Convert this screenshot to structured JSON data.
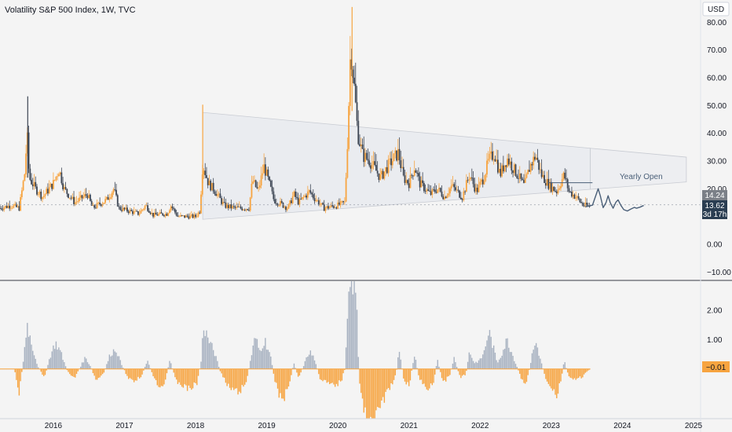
{
  "header": {
    "title": "Volatility S&P 500 Index, 1W, TVC",
    "currency": "USD"
  },
  "price_tags": {
    "upper": "14.24",
    "last": "13.62",
    "countdown": "3d 17h",
    "oscillator": "−0.01"
  },
  "annotations": {
    "yearly_open": "Yearly Open"
  },
  "colors": {
    "up": "#f7a440",
    "down": "#3d4654",
    "osc_pos": "#a8b2c1",
    "osc_neg": "#f7a440",
    "projection": "#4a5f78",
    "triangle_fill": "#e8eaee",
    "tag_dark": "#2a3d52",
    "tag_gray": "#7b8088",
    "tag_orange": "#f7a440"
  },
  "chart_data": [
    {
      "type": "candlestick",
      "title": "Volatility S&P 500 Index, 1W, TVC",
      "y_ticks": [
        "80.00",
        "70.00",
        "60.00",
        "50.00",
        "40.00",
        "30.00",
        "20.00",
        "0.00",
        "−10.00"
      ],
      "ylim": [
        -13,
        88
      ],
      "x_ticks": [
        "2016",
        "2017",
        "2018",
        "2019",
        "2020",
        "2021",
        "2022",
        "2023",
        "2024",
        "2025"
      ],
      "xlim": [
        2015.25,
        2025.1
      ],
      "last_value": 13.62,
      "keypoints": [
        {
          "t": 2015.25,
          "v": 13
        },
        {
          "t": 2015.4,
          "v": 14
        },
        {
          "t": 2015.52,
          "v": 13
        },
        {
          "t": 2015.6,
          "v": 26
        },
        {
          "t": 2015.63,
          "v": 40
        },
        {
          "t": 2015.66,
          "v": 24
        },
        {
          "t": 2015.75,
          "v": 20
        },
        {
          "t": 2015.85,
          "v": 17
        },
        {
          "t": 2016.0,
          "v": 22
        },
        {
          "t": 2016.08,
          "v": 27
        },
        {
          "t": 2016.15,
          "v": 20
        },
        {
          "t": 2016.3,
          "v": 15
        },
        {
          "t": 2016.48,
          "v": 18
        },
        {
          "t": 2016.55,
          "v": 13
        },
        {
          "t": 2016.75,
          "v": 16
        },
        {
          "t": 2016.85,
          "v": 20
        },
        {
          "t": 2016.92,
          "v": 13
        },
        {
          "t": 2017.2,
          "v": 11
        },
        {
          "t": 2017.3,
          "v": 14
        },
        {
          "t": 2017.4,
          "v": 10.5
        },
        {
          "t": 2017.6,
          "v": 11
        },
        {
          "t": 2017.65,
          "v": 14
        },
        {
          "t": 2017.75,
          "v": 10
        },
        {
          "t": 2018.0,
          "v": 10
        },
        {
          "t": 2018.06,
          "v": 12
        },
        {
          "t": 2018.1,
          "v": 29
        },
        {
          "t": 2018.18,
          "v": 22
        },
        {
          "t": 2018.28,
          "v": 19
        },
        {
          "t": 2018.4,
          "v": 14
        },
        {
          "t": 2018.55,
          "v": 13
        },
        {
          "t": 2018.75,
          "v": 13
        },
        {
          "t": 2018.8,
          "v": 23
        },
        {
          "t": 2018.88,
          "v": 19
        },
        {
          "t": 2018.96,
          "v": 28
        },
        {
          "t": 2019.0,
          "v": 25
        },
        {
          "t": 2019.1,
          "v": 16
        },
        {
          "t": 2019.3,
          "v": 13
        },
        {
          "t": 2019.38,
          "v": 18
        },
        {
          "t": 2019.45,
          "v": 15
        },
        {
          "t": 2019.6,
          "v": 19
        },
        {
          "t": 2019.66,
          "v": 17
        },
        {
          "t": 2019.8,
          "v": 13
        },
        {
          "t": 2020.0,
          "v": 14
        },
        {
          "t": 2020.1,
          "v": 15
        },
        {
          "t": 2020.14,
          "v": 40
        },
        {
          "t": 2020.18,
          "v": 72
        },
        {
          "t": 2020.22,
          "v": 60
        },
        {
          "t": 2020.28,
          "v": 40
        },
        {
          "t": 2020.35,
          "v": 32
        },
        {
          "t": 2020.45,
          "v": 30
        },
        {
          "t": 2020.5,
          "v": 28
        },
        {
          "t": 2020.6,
          "v": 24
        },
        {
          "t": 2020.7,
          "v": 28
        },
        {
          "t": 2020.85,
          "v": 33
        },
        {
          "t": 2020.92,
          "v": 24
        },
        {
          "t": 2021.0,
          "v": 22
        },
        {
          "t": 2021.08,
          "v": 28
        },
        {
          "t": 2021.15,
          "v": 22
        },
        {
          "t": 2021.3,
          "v": 18
        },
        {
          "t": 2021.4,
          "v": 20
        },
        {
          "t": 2021.5,
          "v": 17
        },
        {
          "t": 2021.6,
          "v": 21
        },
        {
          "t": 2021.75,
          "v": 17
        },
        {
          "t": 2021.85,
          "v": 25
        },
        {
          "t": 2021.95,
          "v": 19
        },
        {
          "t": 2022.05,
          "v": 24
        },
        {
          "t": 2022.12,
          "v": 30
        },
        {
          "t": 2022.2,
          "v": 33
        },
        {
          "t": 2022.28,
          "v": 25
        },
        {
          "t": 2022.38,
          "v": 31
        },
        {
          "t": 2022.45,
          "v": 28
        },
        {
          "t": 2022.55,
          "v": 24
        },
        {
          "t": 2022.62,
          "v": 21
        },
        {
          "t": 2022.7,
          "v": 28
        },
        {
          "t": 2022.78,
          "v": 32
        },
        {
          "t": 2022.86,
          "v": 25
        },
        {
          "t": 2022.98,
          "v": 21
        },
        {
          "t": 2023.08,
          "v": 19
        },
        {
          "t": 2023.18,
          "v": 25
        },
        {
          "t": 2023.25,
          "v": 19
        },
        {
          "t": 2023.35,
          "v": 17
        },
        {
          "t": 2023.45,
          "v": 14
        },
        {
          "t": 2023.55,
          "v": 13.6
        }
      ],
      "triangle": [
        [
          2018.1,
          47.5
        ],
        [
          2023.55,
          34.6
        ],
        [
          2023.55,
          19.8
        ],
        [
          2018.1,
          9.0
        ]
      ],
      "yearly_open": {
        "t0": 2022.95,
        "t1": 2023.58,
        "value": 22.2
      },
      "last_value_line": {
        "t0": 2015.25,
        "t1": 2024.3,
        "value": 14.24
      },
      "projection": [
        [
          2023.48,
          13.5
        ],
        [
          2023.58,
          14.1
        ],
        [
          2023.63,
          17.8
        ],
        [
          2023.66,
          20.0
        ],
        [
          2023.69,
          17.5
        ],
        [
          2023.73,
          13.2
        ],
        [
          2023.77,
          15.0
        ],
        [
          2023.8,
          17.5
        ],
        [
          2023.83,
          15.0
        ],
        [
          2023.87,
          13.0
        ],
        [
          2023.91,
          15.2
        ],
        [
          2023.94,
          16.0
        ],
        [
          2023.98,
          14.0
        ],
        [
          2024.02,
          12.5
        ],
        [
          2024.07,
          12.0
        ],
        [
          2024.12,
          12.7
        ],
        [
          2024.17,
          13.3
        ],
        [
          2024.2,
          13.0
        ],
        [
          2024.25,
          13.4
        ],
        [
          2024.3,
          14.0
        ]
      ]
    },
    {
      "type": "bar",
      "title": "",
      "y_ticks": [
        "2.00",
        "1.00",
        "−0.01"
      ],
      "ylim": [
        -1.7,
        3.0
      ],
      "last_value": -0.01,
      "keypoints": [
        {
          "t": 2015.25,
          "v": 0.0
        },
        {
          "t": 2015.45,
          "v": 0.0
        },
        {
          "t": 2015.52,
          "v": -0.8
        },
        {
          "t": 2015.58,
          "v": 0.3
        },
        {
          "t": 2015.63,
          "v": 1.6
        },
        {
          "t": 2015.68,
          "v": 1.0
        },
        {
          "t": 2015.78,
          "v": 0.1
        },
        {
          "t": 2015.88,
          "v": -0.3
        },
        {
          "t": 2015.95,
          "v": 0.4
        },
        {
          "t": 2016.03,
          "v": 0.9
        },
        {
          "t": 2016.1,
          "v": 0.6
        },
        {
          "t": 2016.2,
          "v": -0.1
        },
        {
          "t": 2016.3,
          "v": -0.3
        },
        {
          "t": 2016.45,
          "v": 0.4
        },
        {
          "t": 2016.52,
          "v": 0.1
        },
        {
          "t": 2016.6,
          "v": -0.4
        },
        {
          "t": 2016.7,
          "v": -0.2
        },
        {
          "t": 2016.8,
          "v": 0.5
        },
        {
          "t": 2016.88,
          "v": 0.7
        },
        {
          "t": 2016.95,
          "v": 0.2
        },
        {
          "t": 2017.05,
          "v": -0.3
        },
        {
          "t": 2017.15,
          "v": -0.4
        },
        {
          "t": 2017.25,
          "v": -0.2
        },
        {
          "t": 2017.32,
          "v": 0.3
        },
        {
          "t": 2017.45,
          "v": -0.5
        },
        {
          "t": 2017.55,
          "v": -0.6
        },
        {
          "t": 2017.64,
          "v": 0.3
        },
        {
          "t": 2017.72,
          "v": -0.4
        },
        {
          "t": 2017.9,
          "v": -0.7
        },
        {
          "t": 2018.02,
          "v": -0.5
        },
        {
          "t": 2018.08,
          "v": 0.3
        },
        {
          "t": 2018.11,
          "v": 1.5
        },
        {
          "t": 2018.18,
          "v": 1.0
        },
        {
          "t": 2018.26,
          "v": 0.6
        },
        {
          "t": 2018.35,
          "v": -0.1
        },
        {
          "t": 2018.45,
          "v": -0.6
        },
        {
          "t": 2018.58,
          "v": -0.8
        },
        {
          "t": 2018.7,
          "v": -0.6
        },
        {
          "t": 2018.78,
          "v": 0.4
        },
        {
          "t": 2018.84,
          "v": 1.1
        },
        {
          "t": 2018.9,
          "v": 0.6
        },
        {
          "t": 2018.97,
          "v": 1.0
        },
        {
          "t": 2019.05,
          "v": 0.5
        },
        {
          "t": 2019.12,
          "v": -0.5
        },
        {
          "t": 2019.22,
          "v": -1.1
        },
        {
          "t": 2019.3,
          "v": -0.7
        },
        {
          "t": 2019.38,
          "v": 0.2
        },
        {
          "t": 2019.45,
          "v": -0.3
        },
        {
          "t": 2019.6,
          "v": 0.6
        },
        {
          "t": 2019.66,
          "v": 0.4
        },
        {
          "t": 2019.75,
          "v": -0.3
        },
        {
          "t": 2019.85,
          "v": -0.5
        },
        {
          "t": 2019.95,
          "v": -0.6
        },
        {
          "t": 2020.05,
          "v": -0.4
        },
        {
          "t": 2020.1,
          "v": 0.0
        },
        {
          "t": 2020.14,
          "v": 1.8
        },
        {
          "t": 2020.18,
          "v": 3.0
        },
        {
          "t": 2020.24,
          "v": 3.0
        },
        {
          "t": 2020.27,
          "v": 1.8
        },
        {
          "t": 2020.3,
          "v": -0.4
        },
        {
          "t": 2020.35,
          "v": -1.3
        },
        {
          "t": 2020.42,
          "v": -1.7
        },
        {
          "t": 2020.55,
          "v": -1.7
        },
        {
          "t": 2020.6,
          "v": -1.2
        },
        {
          "t": 2020.7,
          "v": -0.8
        },
        {
          "t": 2020.82,
          "v": -0.2
        },
        {
          "t": 2020.86,
          "v": 0.8
        },
        {
          "t": 2020.92,
          "v": -0.3
        },
        {
          "t": 2021.0,
          "v": -0.6
        },
        {
          "t": 2021.08,
          "v": 0.5
        },
        {
          "t": 2021.14,
          "v": -0.3
        },
        {
          "t": 2021.25,
          "v": -0.7
        },
        {
          "t": 2021.35,
          "v": -0.4
        },
        {
          "t": 2021.4,
          "v": 0.3
        },
        {
          "t": 2021.48,
          "v": -0.5
        },
        {
          "t": 2021.58,
          "v": -0.2
        },
        {
          "t": 2021.63,
          "v": 0.4
        },
        {
          "t": 2021.72,
          "v": -0.3
        },
        {
          "t": 2021.8,
          "v": -0.2
        },
        {
          "t": 2021.85,
          "v": 0.6
        },
        {
          "t": 2021.92,
          "v": 0.2
        },
        {
          "t": 2022.0,
          "v": 0.3
        },
        {
          "t": 2022.06,
          "v": 0.6
        },
        {
          "t": 2022.12,
          "v": 1.3
        },
        {
          "t": 2022.18,
          "v": 0.8
        },
        {
          "t": 2022.24,
          "v": 0.2
        },
        {
          "t": 2022.3,
          "v": 0.5
        },
        {
          "t": 2022.38,
          "v": 1.0
        },
        {
          "t": 2022.44,
          "v": 0.6
        },
        {
          "t": 2022.5,
          "v": 0.2
        },
        {
          "t": 2022.56,
          "v": -0.2
        },
        {
          "t": 2022.62,
          "v": -0.6
        },
        {
          "t": 2022.68,
          "v": -0.2
        },
        {
          "t": 2022.74,
          "v": 0.6
        },
        {
          "t": 2022.79,
          "v": 0.9
        },
        {
          "t": 2022.85,
          "v": 0.3
        },
        {
          "t": 2022.92,
          "v": -0.3
        },
        {
          "t": 2023.0,
          "v": -0.6
        },
        {
          "t": 2023.08,
          "v": -0.9
        },
        {
          "t": 2023.14,
          "v": -0.4
        },
        {
          "t": 2023.18,
          "v": 0.3
        },
        {
          "t": 2023.24,
          "v": -0.2
        },
        {
          "t": 2023.32,
          "v": -0.4
        },
        {
          "t": 2023.42,
          "v": -0.3
        },
        {
          "t": 2023.5,
          "v": -0.1
        },
        {
          "t": 2023.55,
          "v": -0.01
        }
      ]
    }
  ]
}
